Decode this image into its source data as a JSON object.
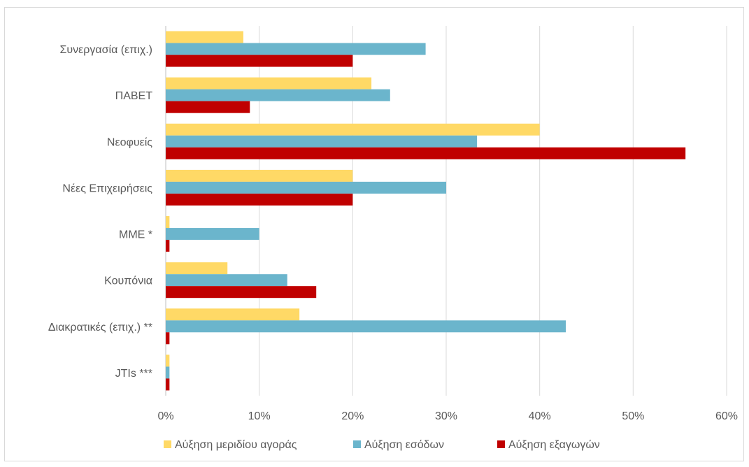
{
  "chart_data": {
    "type": "bar",
    "orientation": "horizontal",
    "title": "",
    "xlabel": "",
    "ylabel": "",
    "categories": [
      "Συνεργασία (επιχ.)",
      "ΠΑΒΕΤ",
      "Νεοφυείς",
      "Νέες Επιχειρήσεις",
      "ΜΜΕ *",
      "Κουπόνια",
      "Διακρατικές (επιχ.) **",
      "JTIs ***"
    ],
    "series": [
      {
        "name": "Αύξηση μεριδίου αγοράς",
        "color": "#FFD966",
        "values": [
          8.3,
          22.0,
          40.0,
          20.0,
          0.4,
          6.6,
          14.3,
          0.4
        ]
      },
      {
        "name": "Αύξηση εσόδων",
        "color": "#6BB5CC",
        "values": [
          27.8,
          24.0,
          33.3,
          30.0,
          10.0,
          13.0,
          42.8,
          0.4
        ]
      },
      {
        "name": "Αύξηση εξαγωγών",
        "color": "#C00000",
        "values": [
          20.0,
          9.0,
          55.6,
          20.0,
          0.4,
          16.1,
          0.4,
          0.4
        ]
      }
    ],
    "xlim": [
      0,
      60
    ],
    "x_ticks": [
      "0%",
      "10%",
      "20%",
      "30%",
      "40%",
      "50%",
      "60%"
    ],
    "x_tick_values": [
      0,
      10,
      20,
      30,
      40,
      50,
      60
    ],
    "grid": "vertical",
    "legend_position": "bottom"
  }
}
